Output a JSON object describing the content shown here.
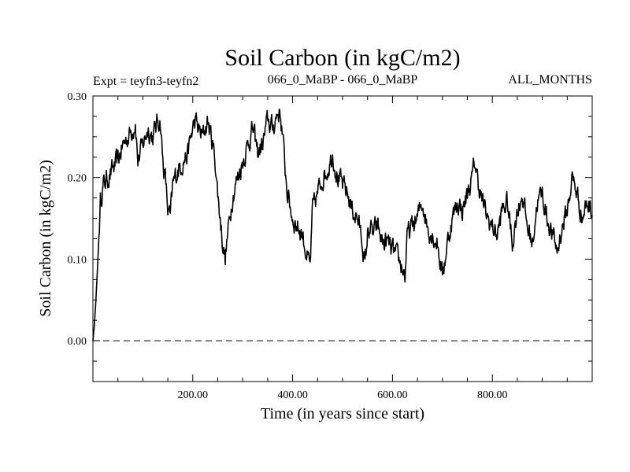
{
  "chart_data": {
    "type": "line",
    "title": "Soil Carbon (in kgC/m2)",
    "expt_label": "Expt = teyfn3-teyfn2",
    "period_label": "066_0_MaBP - 066_0_MaBP",
    "months_label": "ALL_MONTHS",
    "xlabel": "Time (in years since start)",
    "ylabel": "Soil Carbon (in kgC/m2)",
    "xlim": [
      0,
      1000
    ],
    "ylim": [
      -0.05,
      0.3
    ],
    "xticks": [
      200,
      400,
      600,
      800
    ],
    "xtick_labels": [
      "200.00",
      "400.00",
      "600.00",
      "800.00"
    ],
    "yticks": [
      0.0,
      0.1,
      0.2,
      0.3
    ],
    "ytick_labels": [
      "0.00",
      "0.10",
      "0.20",
      "0.30"
    ],
    "reference_line": {
      "y": 0.0,
      "style": "dashed"
    },
    "series": [
      {
        "name": "Soil Carbon",
        "x": [
          0,
          3,
          6,
          10,
          15,
          20,
          30,
          40,
          50,
          60,
          70,
          80,
          85,
          90,
          100,
          110,
          120,
          130,
          135,
          140,
          145,
          150,
          155,
          160,
          170,
          180,
          190,
          200,
          205,
          210,
          220,
          230,
          240,
          245,
          250,
          260,
          265,
          270,
          280,
          290,
          300,
          310,
          320,
          330,
          340,
          350,
          360,
          370,
          375,
          380,
          385,
          390,
          400,
          410,
          420,
          430,
          435,
          440,
          450,
          460,
          470,
          480,
          490,
          500,
          510,
          520,
          530,
          540,
          545,
          550,
          555,
          560,
          570,
          580,
          590,
          600,
          610,
          620,
          625,
          630,
          640,
          650,
          660,
          670,
          680,
          690,
          700,
          710,
          720,
          730,
          740,
          750,
          760,
          765,
          770,
          780,
          790,
          800,
          810,
          820,
          830,
          840,
          850,
          860,
          870,
          880,
          890,
          900,
          910,
          920,
          930,
          940,
          950,
          960,
          970,
          980,
          990,
          1000
        ],
        "values": [
          0.0,
          0.02,
          0.05,
          0.1,
          0.17,
          0.19,
          0.2,
          0.21,
          0.22,
          0.24,
          0.25,
          0.26,
          0.27,
          0.22,
          0.24,
          0.26,
          0.25,
          0.27,
          0.27,
          0.22,
          0.2,
          0.16,
          0.15,
          0.19,
          0.21,
          0.22,
          0.23,
          0.26,
          0.27,
          0.26,
          0.25,
          0.27,
          0.24,
          0.22,
          0.18,
          0.12,
          0.1,
          0.13,
          0.18,
          0.2,
          0.22,
          0.24,
          0.26,
          0.23,
          0.24,
          0.27,
          0.26,
          0.28,
          0.28,
          0.25,
          0.21,
          0.18,
          0.15,
          0.14,
          0.13,
          0.1,
          0.09,
          0.16,
          0.18,
          0.2,
          0.21,
          0.23,
          0.2,
          0.19,
          0.18,
          0.16,
          0.15,
          0.12,
          0.09,
          0.13,
          0.14,
          0.13,
          0.14,
          0.12,
          0.12,
          0.11,
          0.1,
          0.09,
          0.08,
          0.13,
          0.14,
          0.15,
          0.17,
          0.14,
          0.13,
          0.12,
          0.08,
          0.12,
          0.15,
          0.17,
          0.16,
          0.18,
          0.2,
          0.22,
          0.2,
          0.17,
          0.15,
          0.14,
          0.13,
          0.16,
          0.17,
          0.12,
          0.16,
          0.18,
          0.14,
          0.12,
          0.17,
          0.18,
          0.15,
          0.13,
          0.11,
          0.14,
          0.16,
          0.2,
          0.18,
          0.15,
          0.17,
          0.16
        ]
      }
    ]
  }
}
